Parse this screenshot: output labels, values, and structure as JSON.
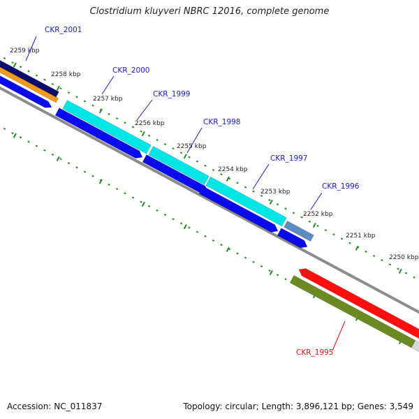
{
  "header": {
    "title": "Clostridium kluyveri NBRC 12016, complete genome"
  },
  "footer": {
    "accession": "Accession: NC_011837",
    "summary": "Topology: circular; Length: 3,896,121 bp; Genes: 3,549"
  },
  "colors": {
    "backbone": "#8c8c8c",
    "forward_gene": "#00e5e5",
    "reverse_gene": "#0a0aee",
    "blue_gene": "#5b8bc0",
    "orange_gene": "#f39a1a",
    "navy_gene": "#0c0c6e",
    "red_gene": "#ff1010",
    "olive_gene": "#6b8a22",
    "ticks": "#228b22",
    "label_blue": "#1a1acc",
    "label_red": "#dd1111"
  },
  "ticks": [
    "2259 kbp",
    "2258 kbp",
    "2257 kbp",
    "2256 kbp",
    "2255 kbp",
    "2254 kbp",
    "2253 kbp",
    "2252 kbp",
    "2251 kbp",
    "2250 kbp"
  ],
  "genes": [
    {
      "name": "CKR_2001",
      "label_color": "label_blue"
    },
    {
      "name": "CKR_2000",
      "label_color": "label_blue"
    },
    {
      "name": "CKR_1999",
      "label_color": "label_blue"
    },
    {
      "name": "CKR_1998",
      "label_color": "label_blue"
    },
    {
      "name": "CKR_1997",
      "label_color": "label_blue"
    },
    {
      "name": "CKR_1996",
      "label_color": "label_blue"
    },
    {
      "name": "CKR_1995",
      "label_color": "label_red"
    }
  ]
}
